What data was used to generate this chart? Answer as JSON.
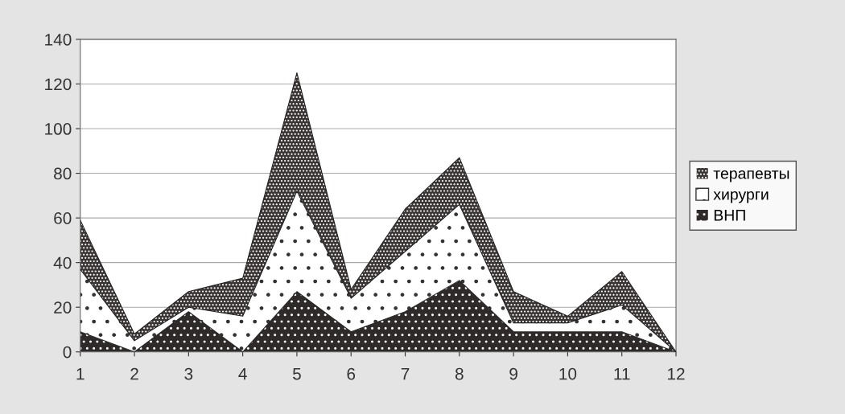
{
  "chart_data": {
    "type": "area",
    "stacked": true,
    "x": [
      1,
      2,
      3,
      4,
      5,
      6,
      7,
      8,
      9,
      10,
      11,
      12
    ],
    "xlim": [
      1,
      12
    ],
    "xticks": [
      1,
      2,
      3,
      4,
      5,
      6,
      7,
      8,
      9,
      10,
      11,
      12
    ],
    "ylim": [
      0,
      140
    ],
    "yticks": [
      0,
      20,
      40,
      60,
      80,
      100,
      120,
      140
    ],
    "grid": "y",
    "legend": "right",
    "series": [
      {
        "name": "ВНП",
        "color": "#2e2a2a",
        "values": [
          9,
          0,
          18,
          0,
          27,
          9,
          18,
          32,
          9,
          9,
          9,
          0
        ]
      },
      {
        "name": "хирурги",
        "color": "#ffffff",
        "values": [
          28,
          5,
          2,
          16,
          45,
          15,
          27,
          34,
          4,
          4,
          12,
          0
        ]
      },
      {
        "name": "терапевты",
        "color": "#3a3535",
        "values": [
          22,
          3,
          7,
          17,
          53,
          4,
          19,
          21,
          14,
          3,
          15,
          0
        ]
      }
    ]
  }
}
